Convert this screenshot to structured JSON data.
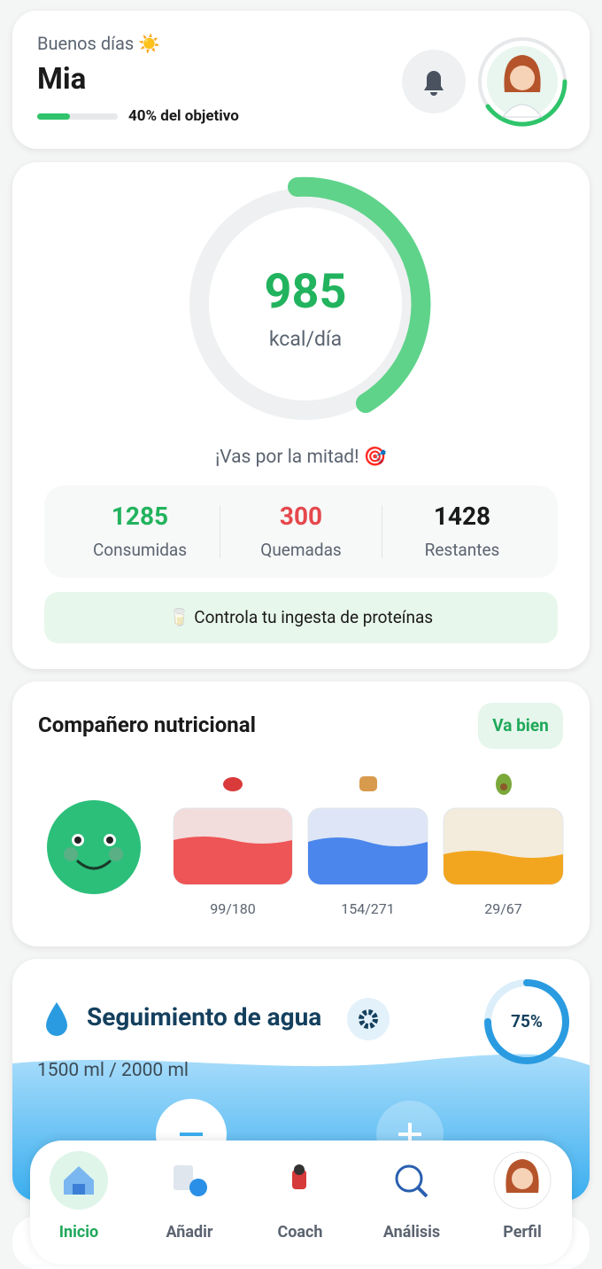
{
  "header": {
    "greeting": "Buenos días ☀️",
    "name": "Mia",
    "goal_label": "40% del objetivo"
  },
  "calories": {
    "value": "985",
    "unit": "kcal/día",
    "message": "¡Vas por la mitad! 🎯",
    "stats": [
      {
        "value": "1285",
        "label": "Consumidas"
      },
      {
        "value": "300",
        "label": "Quemadas"
      },
      {
        "value": "1428",
        "label": "Restantes"
      }
    ],
    "tip": "🥛 Controla tu ingesta de proteínas"
  },
  "companion": {
    "title": "Compañero nutricional",
    "status": "Va bien",
    "macros": [
      "99/180",
      "154/271",
      "29/67"
    ]
  },
  "water": {
    "title": "Seguimiento de agua",
    "amount": "1500 ml / 2000 ml",
    "percent": "75%"
  },
  "nav": [
    "Inicio",
    "Añadir",
    "Coach",
    "Análisis",
    "Perfil"
  ]
}
